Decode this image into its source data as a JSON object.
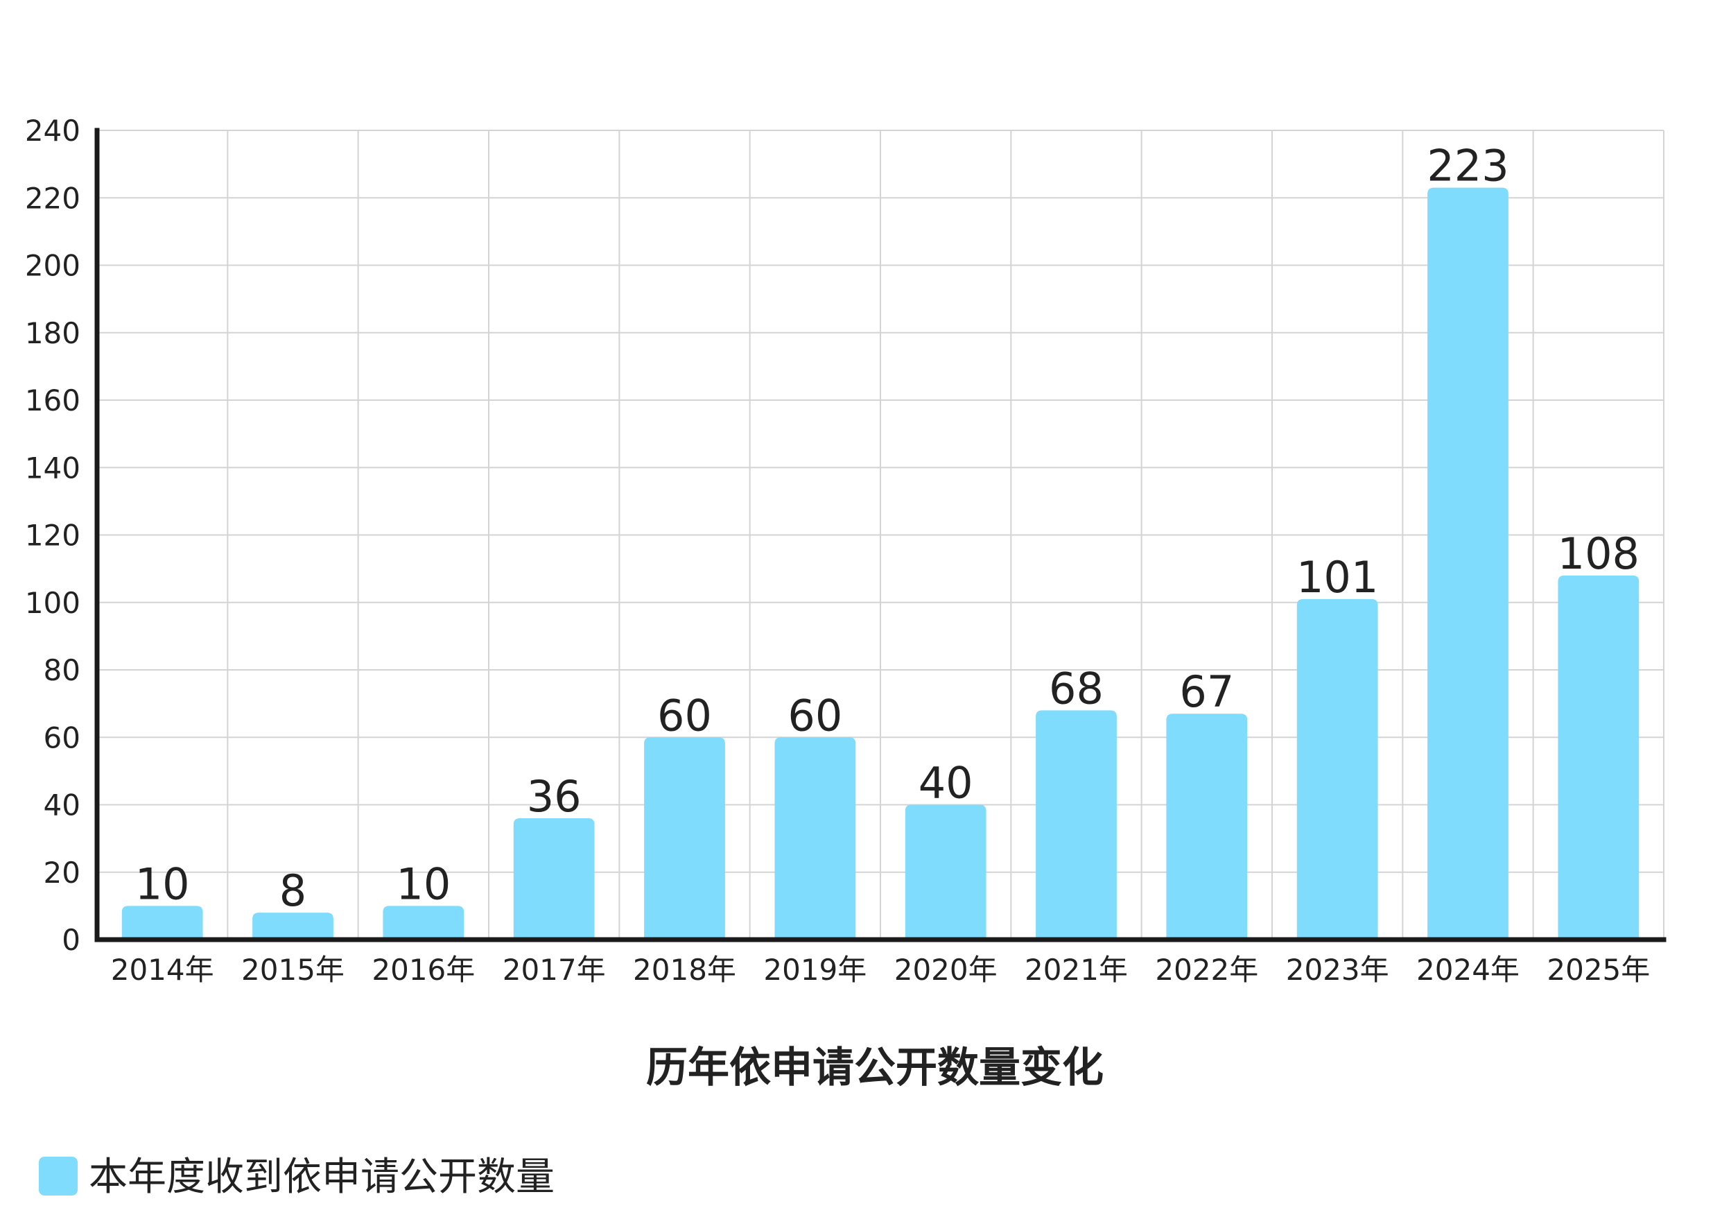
{
  "chart_data": {
    "type": "bar",
    "title": "历年依申请公开数量变化",
    "xlabel": "",
    "ylabel": "",
    "categories": [
      "2014年",
      "2015年",
      "2016年",
      "2017年",
      "2018年",
      "2019年",
      "2020年",
      "2021年",
      "2022年",
      "2023年",
      "2024年",
      "2025年"
    ],
    "series": [
      {
        "name": "本年度收到依申请公开数量",
        "color": "#80dcfc",
        "values": [
          10,
          8,
          10,
          36,
          60,
          60,
          40,
          68,
          67,
          101,
          223,
          108
        ]
      }
    ],
    "ylim": [
      0,
      240
    ],
    "yticks": [
      0,
      20,
      40,
      60,
      80,
      100,
      120,
      140,
      160,
      180,
      200,
      220,
      240
    ],
    "data_labels": true,
    "grid": true,
    "legend_position": "bottom-left"
  }
}
